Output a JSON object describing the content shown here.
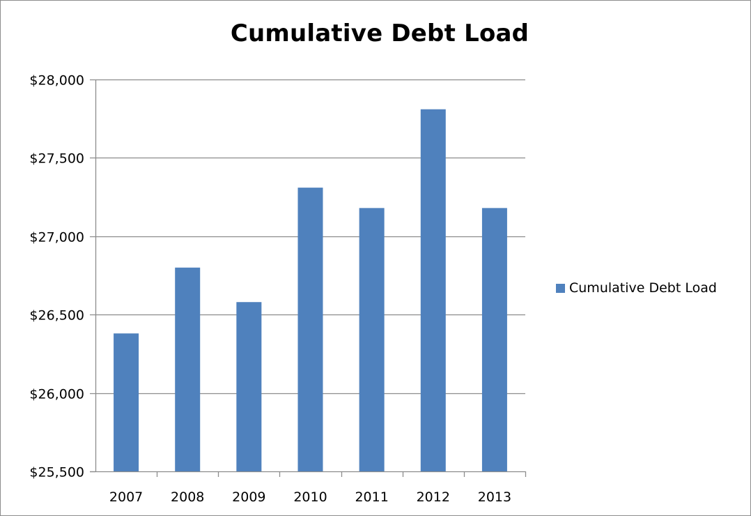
{
  "chart_data": {
    "type": "bar",
    "title": "Cumulative Debt Load",
    "xlabel": "",
    "ylabel": "",
    "categories": [
      "2007",
      "2008",
      "2009",
      "2010",
      "2011",
      "2012",
      "2013"
    ],
    "series": [
      {
        "name": "Cumulative Debt Load",
        "values": [
          26380,
          26800,
          26580,
          27310,
          27180,
          27810,
          27180
        ]
      }
    ],
    "ylim": [
      25500,
      28000
    ],
    "yticks": [
      25500,
      26000,
      26500,
      27000,
      27500,
      28000
    ],
    "ytick_labels": [
      "$25,500",
      "$26,000",
      "$26,500",
      "$27,000",
      "$27,500",
      "$28,000"
    ],
    "grid": true,
    "legend_position": "right",
    "colors": {
      "bar": "#4f81bd",
      "grid": "#8c8c8c",
      "axis": "#8c8c8c",
      "text": "#000000"
    }
  }
}
